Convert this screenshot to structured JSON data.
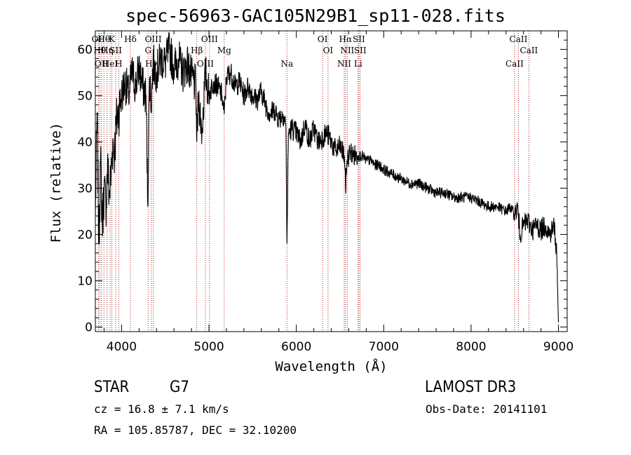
{
  "chart_data": {
    "type": "line",
    "title": "spec-56963-GAC105N29B1_sp11-028.fits",
    "xlabel": "Wavelength (Å)",
    "ylabel": "Flux (relative)",
    "xlim": [
      3700,
      9100
    ],
    "ylim": [
      -1,
      64
    ],
    "xticks": [
      4000,
      5000,
      6000,
      7000,
      8000,
      9000
    ],
    "yticks": [
      0,
      10,
      20,
      30,
      40,
      50,
      60
    ],
    "xtick_labels": [
      "4000",
      "5000",
      "6000",
      "7000",
      "8000",
      "9000"
    ],
    "ytick_labels": [
      "0",
      "10",
      "20",
      "30",
      "40",
      "50",
      "60"
    ],
    "series": [
      {
        "name": "flux",
        "x": [
          3700,
          3720,
          3740,
          3760,
          3780,
          3800,
          3820,
          3840,
          3860,
          3880,
          3900,
          3920,
          3940,
          3960,
          3980,
          4000,
          4040,
          4080,
          4120,
          4160,
          4200,
          4240,
          4280,
          4300,
          4320,
          4340,
          4360,
          4400,
          4450,
          4500,
          4550,
          4600,
          4650,
          4700,
          4750,
          4800,
          4850,
          4861,
          4880,
          4920,
          4960,
          5000,
          5050,
          5100,
          5150,
          5175,
          5200,
          5250,
          5300,
          5350,
          5400,
          5450,
          5500,
          5550,
          5600,
          5650,
          5700,
          5750,
          5800,
          5850,
          5880,
          5893,
          5910,
          5950,
          6000,
          6050,
          6100,
          6150,
          6200,
          6250,
          6300,
          6350,
          6400,
          6450,
          6500,
          6550,
          6563,
          6580,
          6620,
          6650,
          6700,
          6750,
          6800,
          6850,
          6900,
          6950,
          7000,
          7100,
          7200,
          7300,
          7400,
          7500,
          7600,
          7700,
          7800,
          7900,
          8000,
          8100,
          8200,
          8300,
          8400,
          8450,
          8500,
          8530,
          8560,
          8600,
          8650,
          8700,
          8750,
          8800,
          8850,
          8900,
          8950,
          8980,
          9000
        ],
        "y": [
          24,
          46,
          18,
          36,
          22,
          30,
          26,
          35,
          28,
          33,
          40,
          38,
          44,
          46,
          48,
          50,
          53,
          50,
          55,
          52,
          56,
          52,
          50,
          26,
          54,
          48,
          57,
          55,
          58,
          57,
          60,
          56,
          58,
          55,
          57,
          54,
          52,
          40,
          50,
          42,
          55,
          50,
          53,
          52,
          50,
          46,
          54,
          55,
          52,
          53,
          50,
          52,
          50,
          49,
          51,
          48,
          46,
          47,
          45,
          46,
          44,
          18,
          42,
          43,
          42,
          40,
          44,
          40,
          43,
          40,
          41,
          42,
          40,
          38,
          39,
          37,
          30,
          36,
          38,
          37,
          37,
          37,
          36,
          36,
          35,
          35,
          34,
          33,
          32,
          31,
          31,
          30,
          29,
          29,
          28,
          28,
          28,
          27,
          26,
          26,
          25,
          26,
          24,
          26,
          20,
          22,
          23,
          21,
          22,
          21,
          22,
          20,
          22,
          16,
          1
        ]
      }
    ],
    "line_markers": [
      {
        "wavelength": 3734,
        "label": "OII"
      },
      {
        "wavelength": 3750,
        "label": "Hθ"
      },
      {
        "wavelength": 3770,
        "label": "OII"
      },
      {
        "wavelength": 3798,
        "label": "Hθ"
      },
      {
        "wavelength": 3835,
        "label": "Hη"
      },
      {
        "wavelength": 3869,
        "label": "HeI"
      },
      {
        "wavelength": 3889,
        "label": "K"
      },
      {
        "wavelength": 3934,
        "label": "SII"
      },
      {
        "wavelength": 3968,
        "label": "H"
      },
      {
        "wavelength": 4101,
        "label": "Hδ"
      },
      {
        "wavelength": 4304,
        "label": "G"
      },
      {
        "wavelength": 4340,
        "label": "Hγ"
      },
      {
        "wavelength": 4363,
        "label": "OIII"
      },
      {
        "wavelength": 4861,
        "label": "Hβ"
      },
      {
        "wavelength": 4959,
        "label": "OIII"
      },
      {
        "wavelength": 5007,
        "label": "OIII"
      },
      {
        "wavelength": 5175,
        "label": "Mg"
      },
      {
        "wavelength": 5893,
        "label": "Na"
      },
      {
        "wavelength": 6300,
        "label": "OI"
      },
      {
        "wavelength": 6363,
        "label": "OI"
      },
      {
        "wavelength": 6548,
        "label": "NII"
      },
      {
        "wavelength": 6563,
        "label": "Hα"
      },
      {
        "wavelength": 6583,
        "label": "NII"
      },
      {
        "wavelength": 6707,
        "label": "Li"
      },
      {
        "wavelength": 6716,
        "label": "SII"
      },
      {
        "wavelength": 6731,
        "label": "SII"
      },
      {
        "wavelength": 8498,
        "label": "CaII"
      },
      {
        "wavelength": 8542,
        "label": "CaII"
      },
      {
        "wavelength": 8662,
        "label": "CaII"
      }
    ],
    "grid": false,
    "legend": "none"
  },
  "info": {
    "object_type": "STAR",
    "subclass": "G7",
    "survey": "LAMOST DR3",
    "cz": "cz = 16.8 ± 7.1 km/s",
    "obs_date": "Obs-Date: 20141101",
    "coords": "RA = 105.85787, DEC =  32.10200"
  },
  "colors": {
    "axis": "#000000",
    "spectrum": "#000000",
    "line_marker": "#b22222",
    "background": "#ffffff"
  }
}
